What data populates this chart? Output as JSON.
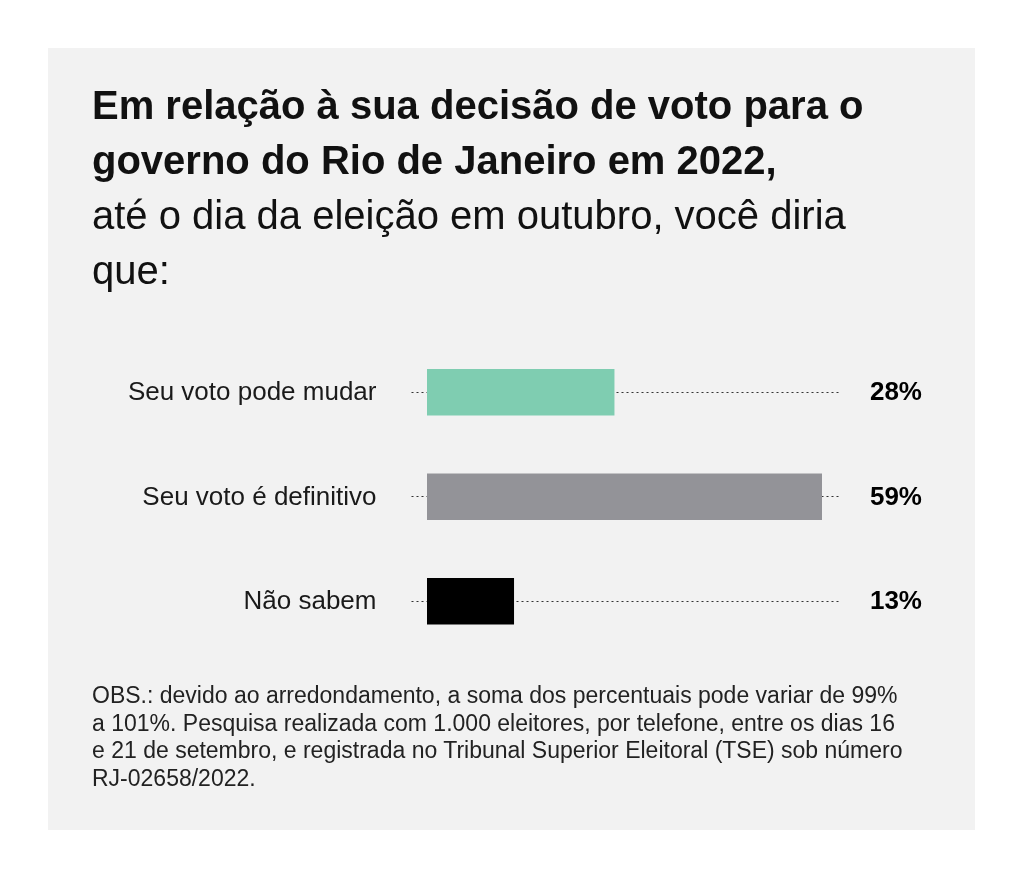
{
  "chart_data": {
    "type": "bar",
    "orientation": "horizontal",
    "title": "Em relação à sua decisão de voto para o governo do Rio de Janeiro em 2022,",
    "subtitle": "até o dia da eleição em outubro, você diria que:",
    "categories": [
      "Seu voto pode mudar",
      "Seu voto é definitivo",
      "Não sabem"
    ],
    "values": [
      28,
      59,
      13
    ],
    "colors": [
      "#7fcdb1",
      "#939398",
      "#000000"
    ],
    "value_labels": [
      "28%",
      "59%",
      "13%"
    ],
    "grid": "y",
    "annotations": [
      "OBS.: devido ao arredondamento, a soma dos percentuais pode variar de 99% a 101%. Pesquisa realizada com 1.000 eleitores, por telefone, entre os dias 16 e 21 de setembro, e registrada no Tribunal Superior Eleitoral (TSE) sob número RJ-02658/2022."
    ]
  }
}
